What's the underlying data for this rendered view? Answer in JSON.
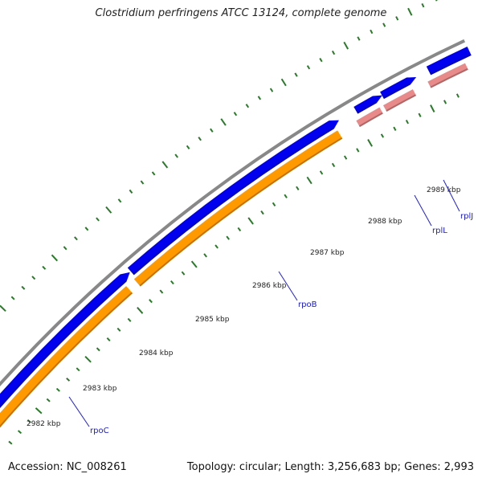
{
  "title": "Clostridium perfringens ATCC 13124, complete genome",
  "footer": {
    "accession": "Accession: NC_008261",
    "summary": "Topology: circular; Length: 3,256,683 bp; Genes: 2,993"
  },
  "colors": {
    "backbone": "#888888",
    "forward_cds": "#0000ee",
    "reverse_cds": "#ff9900",
    "rrna": "#e88a8a",
    "ticks": "#2a7a2a",
    "label_line": "#2020cc",
    "label_text": "#1a1acc"
  },
  "scale_labels": [
    "2982 kbp",
    "2983 kbp",
    "2984 kbp",
    "2985 kbp",
    "2986 kbp",
    "2987 kbp",
    "2988 kbp",
    "2989 kbp"
  ],
  "gene_labels": [
    "rpoC",
    "rpoB",
    "rplL",
    "rplJ"
  ]
}
